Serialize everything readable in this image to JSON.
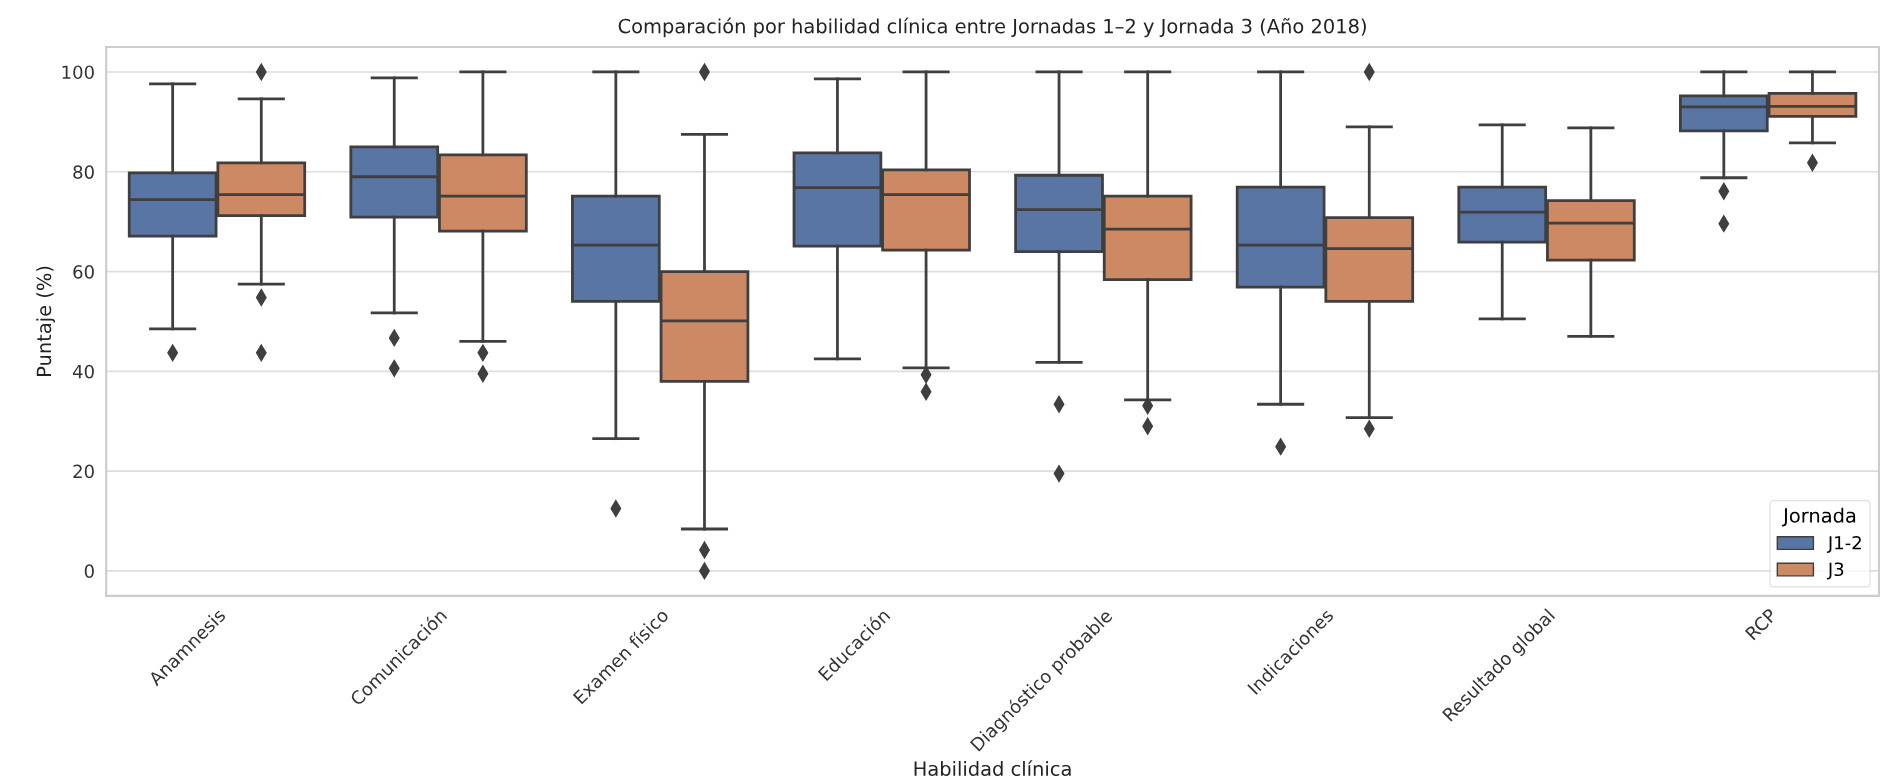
{
  "chart_data": {
    "type": "box",
    "title": "Comparación por habilidad clínica entre Jornadas 1–2 y Jornada 3 (Año 2018)",
    "xlabel": "Habilidad clínica",
    "ylabel": "Puntaje (%)",
    "legend_title": "Jornada",
    "legend": "bottom right",
    "grid": "y",
    "marker": "diamond",
    "categories": [
      "Anamnesis",
      "Comunicación",
      "Examen físico",
      "Educación",
      "Diagnóstico probable",
      "Indicaciones",
      "Resultado global",
      "RCP"
    ],
    "ylim": [
      -5,
      105
    ],
    "yticks": [
      0,
      20,
      40,
      60,
      80,
      100
    ],
    "series": [
      {
        "name": "J1-2",
        "color": "#5875a4",
        "boxes": [
          {
            "low": 48.5,
            "q1": 67.1,
            "median": 74.4,
            "q3": 79.8,
            "high": 97.6,
            "outliers": [
              43.7
            ]
          },
          {
            "low": 51.7,
            "q1": 70.9,
            "median": 79.0,
            "q3": 85.0,
            "high": 98.8,
            "outliers": [
              46.7,
              40.6
            ]
          },
          {
            "low": 26.5,
            "q1": 54.0,
            "median": 65.3,
            "q3": 75.1,
            "high": 100,
            "outliers": [
              12.5
            ]
          },
          {
            "low": 42.5,
            "q1": 65.1,
            "median": 76.8,
            "q3": 83.8,
            "high": 98.6
          },
          {
            "low": 41.8,
            "q1": 64.0,
            "median": 72.4,
            "q3": 79.3,
            "high": 100,
            "outliers": [
              33.4,
              19.5
            ]
          },
          {
            "low": 33.4,
            "q1": 56.9,
            "median": 65.3,
            "q3": 76.9,
            "high": 100,
            "outliers": [
              24.9
            ]
          },
          {
            "low": 50.5,
            "q1": 65.9,
            "median": 71.9,
            "q3": 76.9,
            "high": 89.4
          },
          {
            "low": 78.8,
            "q1": 88.2,
            "median": 93.0,
            "q3": 95.2,
            "high": 100,
            "outliers": [
              76.1,
              69.6
            ]
          }
        ]
      },
      {
        "name": "J3",
        "color": "#cc8963",
        "boxes": [
          {
            "low": 57.5,
            "q1": 71.2,
            "median": 75.4,
            "q3": 81.8,
            "high": 94.6,
            "outliers": [
              100,
              54.8,
              43.7
            ]
          },
          {
            "low": 46.0,
            "q1": 68.1,
            "median": 75.1,
            "q3": 83.4,
            "high": 100,
            "outliers": [
              43.7,
              39.5
            ]
          },
          {
            "low": 8.4,
            "q1": 38.0,
            "median": 50.1,
            "q3": 60.0,
            "high": 87.5,
            "outliers": [
              100,
              4.2,
              0
            ]
          },
          {
            "low": 40.7,
            "q1": 64.3,
            "median": 75.4,
            "q3": 80.4,
            "high": 100,
            "outliers": [
              39.3,
              35.9
            ]
          },
          {
            "low": 34.3,
            "q1": 58.4,
            "median": 68.5,
            "q3": 75.1,
            "high": 100,
            "outliers": [
              33.1,
              29.0
            ]
          },
          {
            "low": 30.7,
            "q1": 54.0,
            "median": 64.6,
            "q3": 70.8,
            "high": 89.0,
            "outliers": [
              100,
              28.5
            ]
          },
          {
            "low": 47.0,
            "q1": 62.3,
            "median": 69.7,
            "q3": 74.2,
            "high": 88.8
          },
          {
            "low": 85.8,
            "q1": 91.1,
            "median": 93.1,
            "q3": 95.7,
            "high": 100,
            "outliers": [
              81.8
            ]
          }
        ]
      }
    ]
  }
}
